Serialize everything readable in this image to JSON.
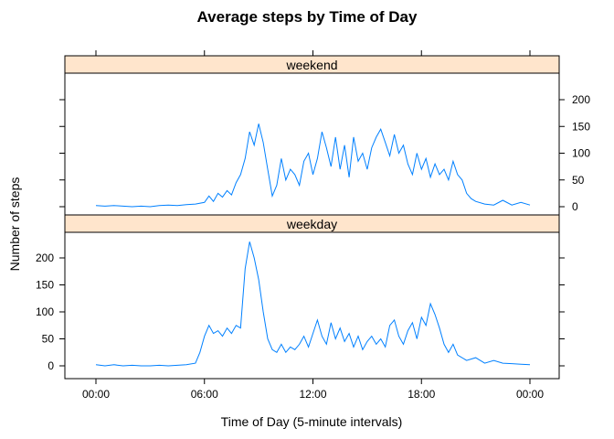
{
  "chart_data": {
    "type": "line",
    "title": "Average steps by Time of Day",
    "xlabel": "Time of Day (5-minute intervals)",
    "ylabel": "Number of steps",
    "x_ticks": [
      "00:00",
      "06:00",
      "12:00",
      "18:00",
      "00:00"
    ],
    "xlim_hours": [
      0,
      24
    ],
    "ylim": [
      0,
      240
    ],
    "y_ticks": [
      "0",
      "50",
      "100",
      "150",
      "200"
    ],
    "line_color": "#0080ff",
    "strip_color": "#ffe5cc",
    "panels": [
      {
        "strip": "weekend",
        "y_axis_side": "right",
        "x_hours": [
          0,
          0.5,
          1,
          1.5,
          2,
          2.5,
          3,
          3.5,
          4,
          4.5,
          5,
          5.5,
          6,
          6.25,
          6.5,
          6.75,
          7,
          7.25,
          7.5,
          7.75,
          8,
          8.25,
          8.5,
          8.75,
          9,
          9.25,
          9.5,
          9.75,
          10,
          10.25,
          10.5,
          10.75,
          11,
          11.25,
          11.5,
          11.75,
          12,
          12.25,
          12.5,
          12.75,
          13,
          13.25,
          13.5,
          13.75,
          14,
          14.25,
          14.5,
          14.75,
          15,
          15.25,
          15.5,
          15.75,
          16,
          16.25,
          16.5,
          16.75,
          17,
          17.25,
          17.5,
          17.75,
          18,
          18.25,
          18.5,
          18.75,
          19,
          19.25,
          19.5,
          19.75,
          20,
          20.25,
          20.5,
          20.75,
          21,
          21.5,
          22,
          22.5,
          23,
          23.5,
          24
        ],
        "steps": [
          2,
          1,
          2,
          1,
          0,
          1,
          0,
          2,
          3,
          2,
          4,
          5,
          8,
          20,
          10,
          25,
          18,
          30,
          22,
          45,
          60,
          90,
          140,
          115,
          155,
          120,
          70,
          20,
          40,
          90,
          50,
          70,
          60,
          40,
          85,
          100,
          60,
          90,
          140,
          110,
          75,
          130,
          70,
          115,
          55,
          130,
          85,
          100,
          70,
          110,
          130,
          145,
          120,
          95,
          135,
          100,
          115,
          80,
          60,
          100,
          70,
          90,
          55,
          80,
          60,
          70,
          50,
          85,
          60,
          50,
          25,
          15,
          10,
          5,
          3,
          12,
          3,
          8,
          3
        ],
        "y_ticks": [
          "0",
          "50",
          "100",
          "150",
          "200"
        ]
      },
      {
        "strip": "weekday",
        "y_axis_side": "left",
        "x_hours": [
          0,
          0.5,
          1,
          1.5,
          2,
          2.5,
          3,
          3.5,
          4,
          4.5,
          5,
          5.5,
          5.75,
          6,
          6.25,
          6.5,
          6.75,
          7,
          7.25,
          7.5,
          7.75,
          8,
          8.25,
          8.5,
          8.75,
          9,
          9.25,
          9.5,
          9.75,
          10,
          10.25,
          10.5,
          10.75,
          11,
          11.25,
          11.5,
          11.75,
          12,
          12.25,
          12.5,
          12.75,
          13,
          13.25,
          13.5,
          13.75,
          14,
          14.25,
          14.5,
          14.75,
          15,
          15.25,
          15.5,
          15.75,
          16,
          16.25,
          16.5,
          16.75,
          17,
          17.25,
          17.5,
          17.75,
          18,
          18.25,
          18.5,
          18.75,
          19,
          19.25,
          19.5,
          19.75,
          20,
          20.5,
          21,
          21.5,
          22,
          22.5,
          23,
          23.5,
          24
        ],
        "steps": [
          2,
          0,
          2,
          0,
          1,
          0,
          0,
          1,
          0,
          1,
          2,
          5,
          25,
          55,
          75,
          60,
          65,
          55,
          70,
          60,
          75,
          70,
          180,
          230,
          200,
          160,
          100,
          50,
          30,
          25,
          40,
          25,
          35,
          30,
          40,
          55,
          35,
          60,
          85,
          55,
          40,
          80,
          50,
          70,
          45,
          60,
          35,
          55,
          30,
          45,
          55,
          40,
          50,
          35,
          75,
          85,
          55,
          40,
          65,
          80,
          50,
          90,
          75,
          115,
          95,
          70,
          40,
          25,
          40,
          20,
          10,
          15,
          5,
          10,
          5,
          4,
          3,
          2
        ],
        "y_ticks": [
          "0",
          "50",
          "100",
          "150",
          "200"
        ]
      }
    ]
  }
}
